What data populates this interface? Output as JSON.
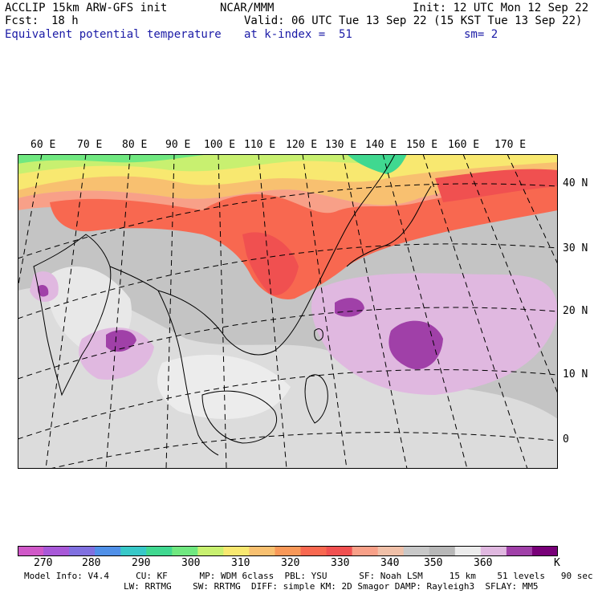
{
  "header": {
    "model": "ACCLIP 15km ARW-GFS init",
    "center": "NCAR/MMM",
    "init": "Init: 12 UTC Mon 12 Sep 22",
    "fcst_label": "Fcst:",
    "fcst_value": "18 h",
    "valid": "Valid: 06 UTC Tue 13 Sep 22 (15 KST Tue 13 Sep 22)",
    "field": "Equivalent potential temperature",
    "level": "at k-index =  51",
    "smoothing": "sm= 2"
  },
  "map": {
    "lon_labels": [
      "60 E",
      "70 E",
      "80 E",
      "90 E",
      "100 E",
      "110 E",
      "120 E",
      "130 E",
      "140 E",
      "150 E",
      "160 E",
      "170 E"
    ],
    "lat_labels": [
      "40 N",
      "30 N",
      "20 N",
      "10 N",
      "0"
    ]
  },
  "colorbar": {
    "unit": "K",
    "ticks": [
      "270",
      "280",
      "290",
      "300",
      "310",
      "320",
      "330",
      "340",
      "350",
      "360"
    ],
    "colors": [
      "#d058c8",
      "#a858d8",
      "#8070e0",
      "#5090e8",
      "#38c8c8",
      "#40d890",
      "#70e880",
      "#c8f070",
      "#f8e870",
      "#f8c070",
      "#f89858",
      "#f86850",
      "#f05050",
      "#f8a088",
      "#f0c0a8",
      "#c8c8c8",
      "#b8b8b8",
      "#ececec",
      "#e0b8e0",
      "#a040a8",
      "#780078"
    ]
  },
  "footer": {
    "line1": "Model Info: V4.4     CU: KF      MP: WDM 6class  PBL: YSU      SF: Noah LSM     15 km    51 levels   90 sec",
    "line2": "LW: RRTMG    SW: RRTMG  DIFF: simple KM: 2D Smagor DAMP: Rayleigh3  SFLAY: MM5"
  }
}
